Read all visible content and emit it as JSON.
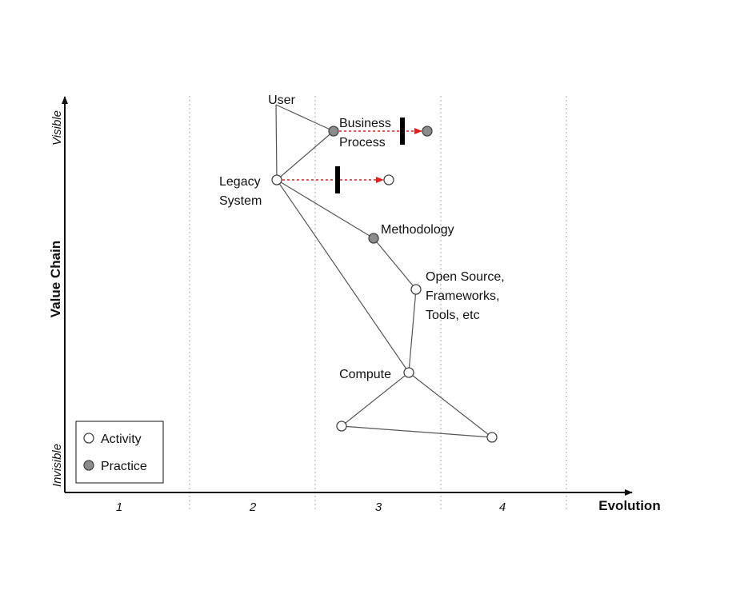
{
  "axes": {
    "y_title": "Value Chain",
    "y_top": "Visible",
    "y_bottom": "Invisible",
    "x_title": "Evolution",
    "stages": [
      "1",
      "2",
      "3",
      "4"
    ]
  },
  "legend": {
    "activity": "Activity",
    "practice": "Practice"
  },
  "nodes": [
    {
      "id": "user",
      "lines": [
        "User"
      ],
      "kind": "none"
    },
    {
      "id": "business",
      "lines": [
        "Business",
        "Process"
      ],
      "kind": "practice"
    },
    {
      "id": "business-future",
      "lines": [],
      "kind": "practice"
    },
    {
      "id": "legacy",
      "lines": [
        "Legacy",
        "System"
      ],
      "kind": "activity"
    },
    {
      "id": "legacy-future",
      "lines": [],
      "kind": "activity"
    },
    {
      "id": "methodology",
      "lines": [
        "Methodology"
      ],
      "kind": "practice"
    },
    {
      "id": "opensource",
      "lines": [
        "Open Source,",
        "Frameworks,",
        "Tools, etc"
      ],
      "kind": "activity"
    },
    {
      "id": "compute",
      "lines": [
        "Compute"
      ],
      "kind": "activity"
    },
    {
      "id": "unnamed-left",
      "lines": [],
      "kind": "activity"
    },
    {
      "id": "unnamed-right",
      "lines": [],
      "kind": "activity"
    }
  ],
  "links": [
    [
      "user",
      "business"
    ],
    [
      "user",
      "legacy"
    ],
    [
      "business",
      "legacy"
    ],
    [
      "legacy",
      "methodology"
    ],
    [
      "legacy",
      "compute"
    ],
    [
      "methodology",
      "opensource"
    ],
    [
      "opensource",
      "compute"
    ],
    [
      "compute",
      "unnamed-left"
    ],
    [
      "compute",
      "unnamed-right"
    ],
    [
      "unnamed-left",
      "unnamed-right"
    ]
  ],
  "evolutions": [
    {
      "from": "business",
      "to": "business-future"
    },
    {
      "from": "legacy",
      "to": "legacy-future"
    }
  ],
  "colors": {
    "line": "#555555",
    "axis": "#111111",
    "divider": "#aaaaaa",
    "practice_fill": "#8c8c8c",
    "activity_fill": "#ffffff",
    "evolve_arrow": "#e02020",
    "inertia": "#000000"
  }
}
